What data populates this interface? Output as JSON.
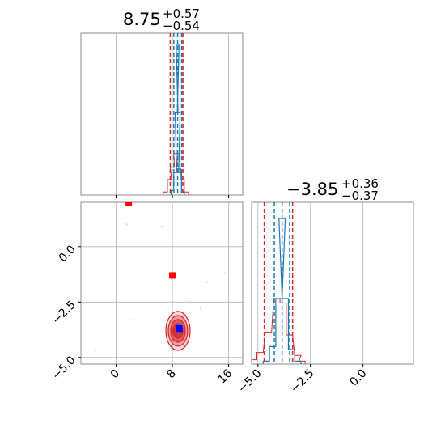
{
  "chart_data": {
    "type": "corner",
    "parameters": [
      {
        "title_main": "8.75",
        "title_plus": "+0.57",
        "title_minus": "−0.54",
        "median": 8.75,
        "quantiles_blue": [
          8.21,
          8.75,
          9.32
        ],
        "quantiles_red": [
          7.7,
          9.5
        ],
        "range": [
          -5,
          18
        ],
        "ticks": [
          0,
          8,
          16
        ],
        "tick_labels": [
          "0",
          "8",
          "16"
        ],
        "hist_blue": [
          [
            8.0,
            0.03
          ],
          [
            8.4,
            0.15
          ],
          [
            8.6,
            0.55
          ],
          [
            8.75,
            1.0
          ],
          [
            8.9,
            0.55
          ],
          [
            9.1,
            0.15
          ],
          [
            9.5,
            0.02
          ]
        ],
        "hist_red": [
          [
            7.0,
            0.02
          ],
          [
            7.6,
            0.1
          ],
          [
            8.0,
            0.18
          ],
          [
            8.5,
            0.27
          ],
          [
            8.9,
            0.17
          ],
          [
            9.4,
            0.1
          ],
          [
            10.0,
            0.02
          ]
        ]
      },
      {
        "title_main": "−3.85",
        "title_plus": "+0.36",
        "title_minus": "−0.37",
        "median": -3.85,
        "quantiles_blue": [
          -4.22,
          -3.85,
          -3.49
        ],
        "quantiles_red": [
          -4.7,
          -3.35
        ],
        "range": [
          -5.3,
          2.4
        ],
        "ticks": [
          -5.0,
          -2.5,
          0.0
        ],
        "tick_labels": [
          "−5.0",
          "−2.5",
          "0.0"
        ],
        "hist_blue": [
          [
            -4.6,
            0.02
          ],
          [
            -4.3,
            0.12
          ],
          [
            -4.0,
            0.45
          ],
          [
            -3.85,
            1.0
          ],
          [
            -3.7,
            0.45
          ],
          [
            -3.4,
            0.1
          ],
          [
            -3.1,
            0.02
          ]
        ],
        "hist_red": [
          [
            -5.2,
            0.03
          ],
          [
            -4.9,
            0.08
          ],
          [
            -4.5,
            0.22
          ],
          [
            -4.1,
            0.45
          ],
          [
            -3.8,
            0.42
          ],
          [
            -3.5,
            0.2
          ],
          [
            -3.1,
            0.06
          ],
          [
            -2.9,
            0.02
          ]
        ]
      }
    ],
    "scatter": {
      "x_range": [
        -5,
        18
      ],
      "y_range": [
        -5.3,
        2.0
      ],
      "x_ticks": [
        0,
        8,
        16
      ],
      "x_tick_labels": [
        "0",
        "8",
        "16"
      ],
      "y_ticks": [
        -5.0,
        -2.5,
        0.0
      ],
      "y_tick_labels": [
        "−5.0",
        "−2.5",
        "0.0"
      ],
      "red_markers": [
        [
          1.8,
          2.0
        ],
        [
          8.0,
          -1.3
        ]
      ],
      "blue_marker": [
        9.0,
        -3.7
      ],
      "contour_center": [
        8.8,
        -3.8
      ],
      "faint_points": [
        [
          1.5,
          1.0
        ],
        [
          6.5,
          0.9
        ],
        [
          13.0,
          -1.6
        ],
        [
          15.5,
          -1.2
        ],
        [
          2.5,
          -3.3
        ],
        [
          -3.0,
          -4.7
        ],
        [
          12.0,
          -2.8
        ],
        [
          10.5,
          -2.5
        ]
      ]
    },
    "colors": {
      "blue": "#1f77b4",
      "red": "#d62728",
      "red_marker": "#ff0000",
      "blue_marker": "#0000ff"
    },
    "grid": true
  }
}
